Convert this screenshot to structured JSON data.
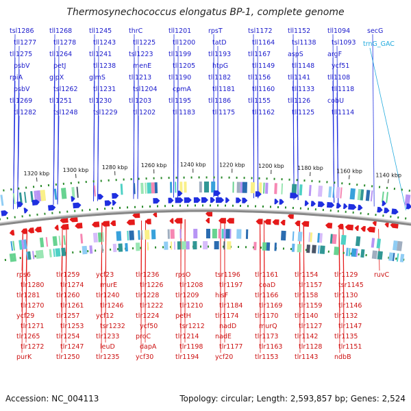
{
  "header": {
    "title": "Thermosynechococcus elongatus BP-1, complete genome"
  },
  "footer": {
    "accession": "Accession: NC_004113",
    "topology": "Topology: circular; Length: 2,593,857 bp; Genes: 2,524"
  },
  "scale": {
    "ticks": [
      {
        "label": "1320 kbp",
        "pos": 1320
      },
      {
        "label": "1300 kbp",
        "pos": 1300
      },
      {
        "label": "1280 kbp",
        "pos": 1280
      },
      {
        "label": "1260 kbp",
        "pos": 1260
      },
      {
        "label": "1240 kbp",
        "pos": 1240
      },
      {
        "label": "1220 kbp",
        "pos": 1220
      },
      {
        "label": "1200 kbp",
        "pos": 1200
      },
      {
        "label": "1180 kbp",
        "pos": 1180
      },
      {
        "label": "1160 kbp",
        "pos": 1160
      },
      {
        "label": "1140 kbp",
        "pos": 1140
      }
    ]
  },
  "colors": {
    "forward_strand": "#1f2fe0",
    "reverse_strand": "#e51a1a",
    "rna_gene": "#22aadd",
    "backbone": "#888888",
    "cog_marker": "#2a8a2a"
  },
  "genes_forward": [
    {
      "name": "tsl1286"
    },
    {
      "name": "tll1277"
    },
    {
      "name": "tll1275"
    },
    {
      "name": "psbV"
    },
    {
      "name": "rpiA"
    },
    {
      "name": "psbV"
    },
    {
      "name": "tll1269"
    },
    {
      "name": "tll1282"
    },
    {
      "name": "tll1268"
    },
    {
      "name": "tll1278"
    },
    {
      "name": "tll1264"
    },
    {
      "name": "petJ"
    },
    {
      "name": "glpX"
    },
    {
      "name": "tsl1262"
    },
    {
      "name": "tll1251"
    },
    {
      "name": "tsl1248"
    },
    {
      "name": "tll1245"
    },
    {
      "name": "tll1243"
    },
    {
      "name": "tll1241"
    },
    {
      "name": "tll1238"
    },
    {
      "name": "glmS"
    },
    {
      "name": "tll1231"
    },
    {
      "name": "tll1230"
    },
    {
      "name": "tsl1229"
    },
    {
      "name": "thrC"
    },
    {
      "name": "tll1225"
    },
    {
      "name": "tsl1223"
    },
    {
      "name": "menE"
    },
    {
      "name": "tll1213"
    },
    {
      "name": "tsl1204"
    },
    {
      "name": "tll1203"
    },
    {
      "name": "tll1202"
    },
    {
      "name": "tll1201"
    },
    {
      "name": "tll1200"
    },
    {
      "name": "tll1199"
    },
    {
      "name": "tll1205"
    },
    {
      "name": "tll1190"
    },
    {
      "name": "cpmA"
    },
    {
      "name": "tll1195"
    },
    {
      "name": "tll1183"
    },
    {
      "name": "rpsT"
    },
    {
      "name": "tatD"
    },
    {
      "name": "tll1193"
    },
    {
      "name": "htpG"
    },
    {
      "name": "tll1182"
    },
    {
      "name": "tll1181"
    },
    {
      "name": "tll1186"
    },
    {
      "name": "tll1175"
    },
    {
      "name": "tsl1172"
    },
    {
      "name": "tll1164"
    },
    {
      "name": "tll1167"
    },
    {
      "name": "tll1149"
    },
    {
      "name": "tll1156"
    },
    {
      "name": "tll1160"
    },
    {
      "name": "tll1155"
    },
    {
      "name": "tll1162"
    },
    {
      "name": "tll1152"
    },
    {
      "name": "tsl1138"
    },
    {
      "name": "aspS"
    },
    {
      "name": "tll1148"
    },
    {
      "name": "tll1141"
    },
    {
      "name": "tll1133"
    },
    {
      "name": "tll1126"
    },
    {
      "name": "tll1125"
    },
    {
      "name": "tll1094"
    },
    {
      "name": "tsl1093"
    },
    {
      "name": "argF"
    },
    {
      "name": "ycf51"
    },
    {
      "name": "tll1108"
    },
    {
      "name": "tll1118"
    },
    {
      "name": "cobU"
    },
    {
      "name": "tll1114"
    },
    {
      "name": "secG"
    }
  ],
  "rna_genes": [
    {
      "name": "trnG_GAC"
    }
  ],
  "genes_reverse": [
    {
      "name": "rps6"
    },
    {
      "name": "tlr1280"
    },
    {
      "name": "tlr1281"
    },
    {
      "name": "tlr1270"
    },
    {
      "name": "ycf29"
    },
    {
      "name": "tlr1271"
    },
    {
      "name": "tlr1265"
    },
    {
      "name": "tlr1272"
    },
    {
      "name": "purK"
    },
    {
      "name": "tlr1259"
    },
    {
      "name": "tlr1274"
    },
    {
      "name": "tlr1260"
    },
    {
      "name": "tlr1261"
    },
    {
      "name": "tlr1257"
    },
    {
      "name": "tlr1253"
    },
    {
      "name": "tlr1254"
    },
    {
      "name": "tlr1247"
    },
    {
      "name": "tlr1250"
    },
    {
      "name": "ycf23"
    },
    {
      "name": "murE"
    },
    {
      "name": "tlr1240"
    },
    {
      "name": "tlr1246"
    },
    {
      "name": "ycf12"
    },
    {
      "name": "tsr1232"
    },
    {
      "name": "tlr1233"
    },
    {
      "name": "leuD"
    },
    {
      "name": "tlr1235"
    },
    {
      "name": "tlr1236"
    },
    {
      "name": "tlr1226"
    },
    {
      "name": "tlr1228"
    },
    {
      "name": "tlr1222"
    },
    {
      "name": "tlr1224"
    },
    {
      "name": "ycf50"
    },
    {
      "name": "proC"
    },
    {
      "name": "dapA"
    },
    {
      "name": "ycf30"
    },
    {
      "name": "rpsO"
    },
    {
      "name": "tlr1208"
    },
    {
      "name": "tlr1209"
    },
    {
      "name": "tlr1210"
    },
    {
      "name": "petH"
    },
    {
      "name": "tsr1212"
    },
    {
      "name": "tlr1214"
    },
    {
      "name": "tlr1198"
    },
    {
      "name": "tlr1194"
    },
    {
      "name": "tsr1196"
    },
    {
      "name": "tlr1197"
    },
    {
      "name": "hisF"
    },
    {
      "name": "tlr1184"
    },
    {
      "name": "tlr1174"
    },
    {
      "name": "nadD"
    },
    {
      "name": "nadE"
    },
    {
      "name": "tlr1177"
    },
    {
      "name": "ycf20"
    },
    {
      "name": "tlr1161"
    },
    {
      "name": "coaD"
    },
    {
      "name": "tlr1166"
    },
    {
      "name": "tlr1169"
    },
    {
      "name": "tlr1170"
    },
    {
      "name": "murQ"
    },
    {
      "name": "tlr1173"
    },
    {
      "name": "tlr1163"
    },
    {
      "name": "tlr1153"
    },
    {
      "name": "tlr1154"
    },
    {
      "name": "tlr1157"
    },
    {
      "name": "tlr1158"
    },
    {
      "name": "tlr1159"
    },
    {
      "name": "tlr1140"
    },
    {
      "name": "tlr1127"
    },
    {
      "name": "tlr1142"
    },
    {
      "name": "tlr1128"
    },
    {
      "name": "tlr1143"
    },
    {
      "name": "tlr1129"
    },
    {
      "name": "tsr1145"
    },
    {
      "name": "tlr1130"
    },
    {
      "name": "tlr1146"
    },
    {
      "name": "tlr1132"
    },
    {
      "name": "tlr1147"
    },
    {
      "name": "tlr1135"
    },
    {
      "name": "tlr1151"
    },
    {
      "name": "ndbB"
    },
    {
      "name": "ruvC"
    }
  ]
}
